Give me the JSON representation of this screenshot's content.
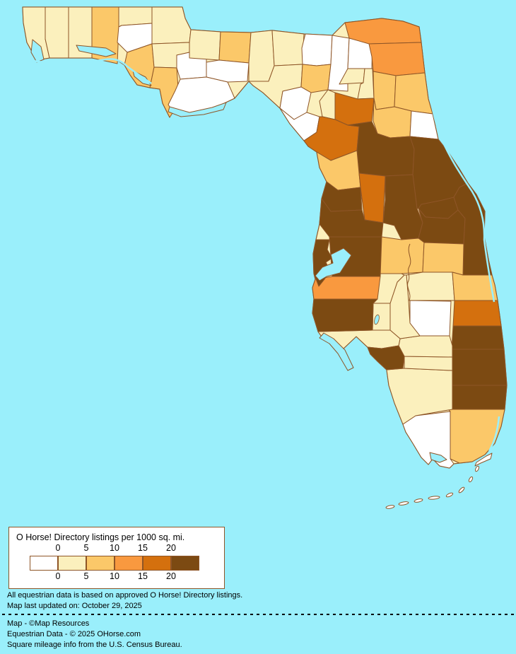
{
  "legend": {
    "title": "O Horse! Directory listings per 1000 sq. mi.",
    "ticks_top": [
      "0",
      "5",
      "10",
      "15",
      "20"
    ],
    "ticks_bottom": [
      "0",
      "5",
      "10",
      "15",
      "20"
    ]
  },
  "notes": {
    "line1": "All equestrian data is based on approved O Horse! Directory listings.",
    "line2": "Map last updated on: October 29, 2025"
  },
  "credits": {
    "line1": "Map - ©Map Resources",
    "line2": "Equestrian Data - © 2025 OHorse.com",
    "line3": "Square mileage info from the U.S. Census Bureau."
  },
  "map": {
    "background_color": "#9AEFFB",
    "border_color": "#8E5527",
    "island_fill": "#FFFFFF",
    "class_colors": [
      "#FFFFFF",
      "#FBF0BD",
      "#FBC869",
      "#F9993F",
      "#D4700E",
      "#7C4A12"
    ],
    "class_labels": [
      "0",
      "0-5",
      "5-10",
      "10-15",
      "15-20",
      "20+"
    ],
    "regions": {
      "escambia": 1,
      "santa_rosa": 1,
      "okaloosa": 1,
      "walton": 2,
      "holmes": 1,
      "washington": 0,
      "bay": 2,
      "jackson": 1,
      "calhoun": 1,
      "gulf": 2,
      "liberty": 0,
      "gadsden": 1,
      "leon": 2,
      "wakulla": 0,
      "franklin": 0,
      "jefferson": 1,
      "madison": 1,
      "taylor": 1,
      "hamilton": 0,
      "suwannee": 2,
      "columbia": 0,
      "lafayette": 0,
      "dixie": 0,
      "baker": 0,
      "union": 1,
      "bradford": 1,
      "nassau": 3,
      "duval": 3,
      "clay": 2,
      "st_johns": 2,
      "putnam": 2,
      "flagler": 0,
      "alachua": 4,
      "gilchrist": 1,
      "levy": 4,
      "marion": 5,
      "volusia": 5,
      "citrus": 2,
      "sumter": 4,
      "hernando": 5,
      "pasco": 5,
      "lake": 5,
      "seminole": 5,
      "orange": 5,
      "brevard": 5,
      "polk": 2,
      "osceola": 2,
      "osceola_south": 1,
      "okeechobee": 0,
      "indian_river": 2,
      "st_lucie": 4,
      "martin": 5,
      "palm_beach": 5,
      "broward": 5,
      "miami_dade": 2,
      "monroe": 0,
      "collier": 1,
      "hendry": 1,
      "glades": 1,
      "highlands": 1,
      "hardee": 1,
      "desoto": 1,
      "charlotte": 1,
      "lee": 5,
      "sarasota": 5,
      "manatee": 3,
      "hillsborough": 5,
      "pinellas": 5
    }
  }
}
